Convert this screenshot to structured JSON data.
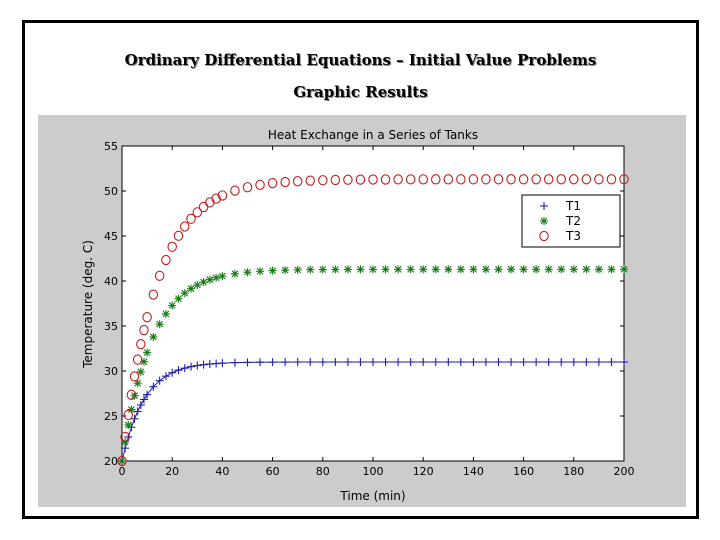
{
  "slide": {
    "title": "Ordinary Differential Equations – Initial Value Problems",
    "subtitle": "Graphic Results"
  },
  "colors": {
    "T1": "#1f1fa8",
    "T2": "#157a15",
    "T3": "#c41e1e",
    "figure_background": "#cccccc",
    "axes_background": "#ffffff"
  },
  "chart_data": {
    "type": "line",
    "title": "Heat Exchange in a Series of Tanks",
    "xlabel": "Time (min)",
    "ylabel": "Temperature (deg. C)",
    "xlim": [
      0,
      200
    ],
    "ylim": [
      20,
      55
    ],
    "xticks": [
      0,
      20,
      40,
      60,
      80,
      100,
      120,
      140,
      160,
      180,
      200
    ],
    "yticks": [
      20,
      25,
      30,
      35,
      40,
      45,
      50,
      55
    ],
    "grid": false,
    "legend_position": "top-right",
    "model": "y = 20 + (final - 20) * (1 - exp(-t / tau)); points sampled at increasing step size",
    "series": [
      {
        "name": "T1",
        "marker": "plus",
        "color_key": "T1",
        "final": 31.0,
        "tau": 9
      },
      {
        "name": "T2",
        "marker": "asterisk",
        "color_key": "T2",
        "final": 41.3,
        "tau": 12
      },
      {
        "name": "T3",
        "marker": "circle",
        "color_key": "T3",
        "final": 51.3,
        "tau": 14
      }
    ]
  }
}
